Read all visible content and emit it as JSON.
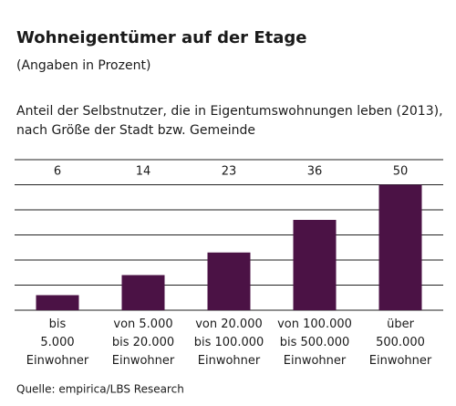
{
  "chart_data": {
    "type": "bar",
    "title": "Wohneigentümer auf der Etage",
    "subtitle": "(Angaben in Prozent)",
    "description": [
      "Anteil der Selbstnutzer, die in Eigentumswohnungen leben (2013),",
      "nach Größe der Stadt bzw. Gemeinde"
    ],
    "categories": [
      "bis\n5.000\nEinwohner",
      "von 5.000\nbis 20.000\nEinwohner",
      "von 20.000\nbis 100.000\nEinwohner",
      "von 100.000\nbis 500.000\nEinwohner",
      "über\n500.000\nEinwohner"
    ],
    "values": [
      6,
      14,
      23,
      36,
      50
    ],
    "color": "#4b1245",
    "ylim": [
      0,
      60
    ],
    "yticks": [
      0,
      10,
      20,
      30,
      40,
      50,
      60
    ],
    "grid": true,
    "source": "Quelle: empirica/LBS Research"
  }
}
